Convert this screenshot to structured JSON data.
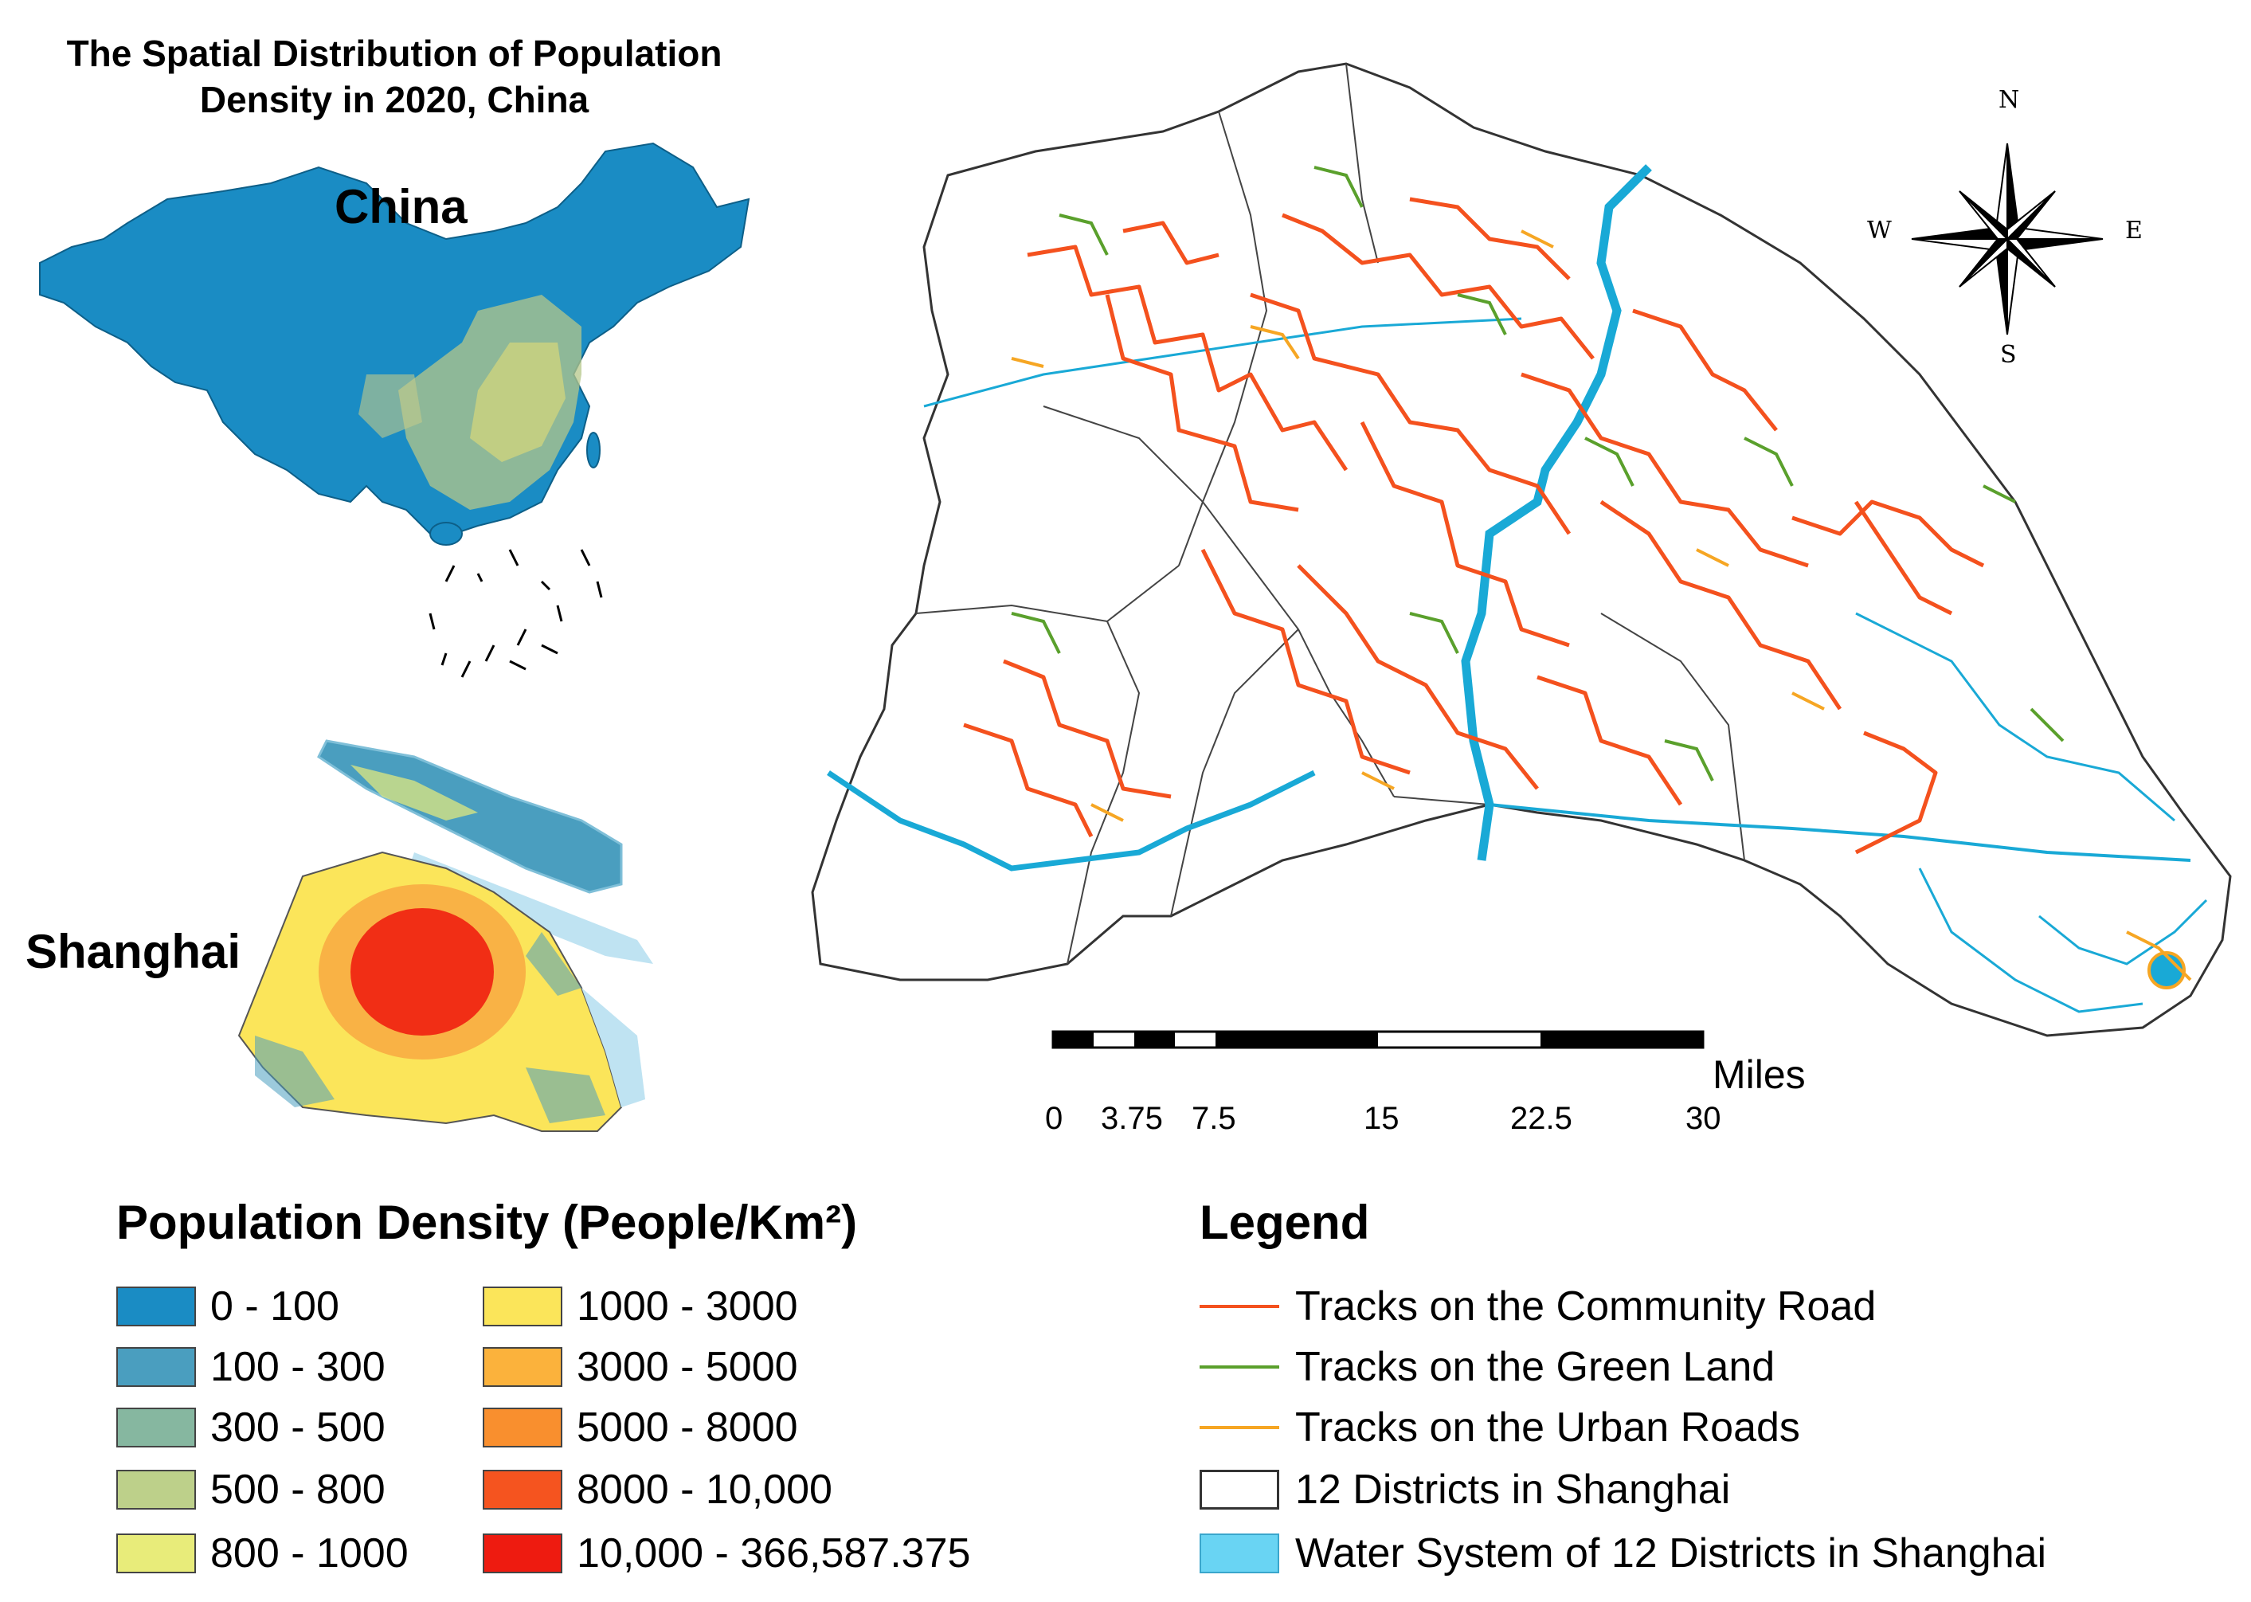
{
  "title": "The Spatial Distribution of Population Density in 2020, China",
  "labels": {
    "china": "China",
    "shanghai": "Shanghai"
  },
  "compass": {
    "n": "N",
    "s": "S",
    "e": "E",
    "w": "W"
  },
  "scale": {
    "unit": "Miles",
    "ticks": [
      "0",
      "3.75",
      "7.5",
      "15",
      "22.5",
      "30"
    ]
  },
  "density_legend": {
    "heading": "Population Density (People/Km²)",
    "items": [
      {
        "label": "0 - 100",
        "color": "#1a8cc4"
      },
      {
        "label": "100 - 300",
        "color": "#4a9ebf"
      },
      {
        "label": "300 - 500",
        "color": "#86b7a0"
      },
      {
        "label": "500 - 800",
        "color": "#bdd08a"
      },
      {
        "label": "800 - 1000",
        "color": "#e8ec7a"
      },
      {
        "label": "1000 - 3000",
        "color": "#fbe55a"
      },
      {
        "label": "3000 - 5000",
        "color": "#fbb23c"
      },
      {
        "label": "5000 - 8000",
        "color": "#f98f2e"
      },
      {
        "label": "8000 - 10,000",
        "color": "#f5541f"
      },
      {
        "label": "10,000 - 366,587.375",
        "color": "#ee1b10"
      }
    ]
  },
  "map_legend": {
    "heading": "Legend",
    "items": [
      {
        "label": "Tracks on the Community Road",
        "color": "#f4511e",
        "kind": "line"
      },
      {
        "label": "Tracks on the Green Land",
        "color": "#5aa02c",
        "kind": "line"
      },
      {
        "label": "Tracks on the Urban Roads",
        "color": "#f6a623",
        "kind": "line"
      },
      {
        "label": "12 Districts in Shanghai",
        "color": "#ffffff",
        "kind": "box"
      },
      {
        "label": "Water System of 12 Districts in Shanghai",
        "color": "#69d4f3",
        "kind": "box"
      }
    ]
  }
}
